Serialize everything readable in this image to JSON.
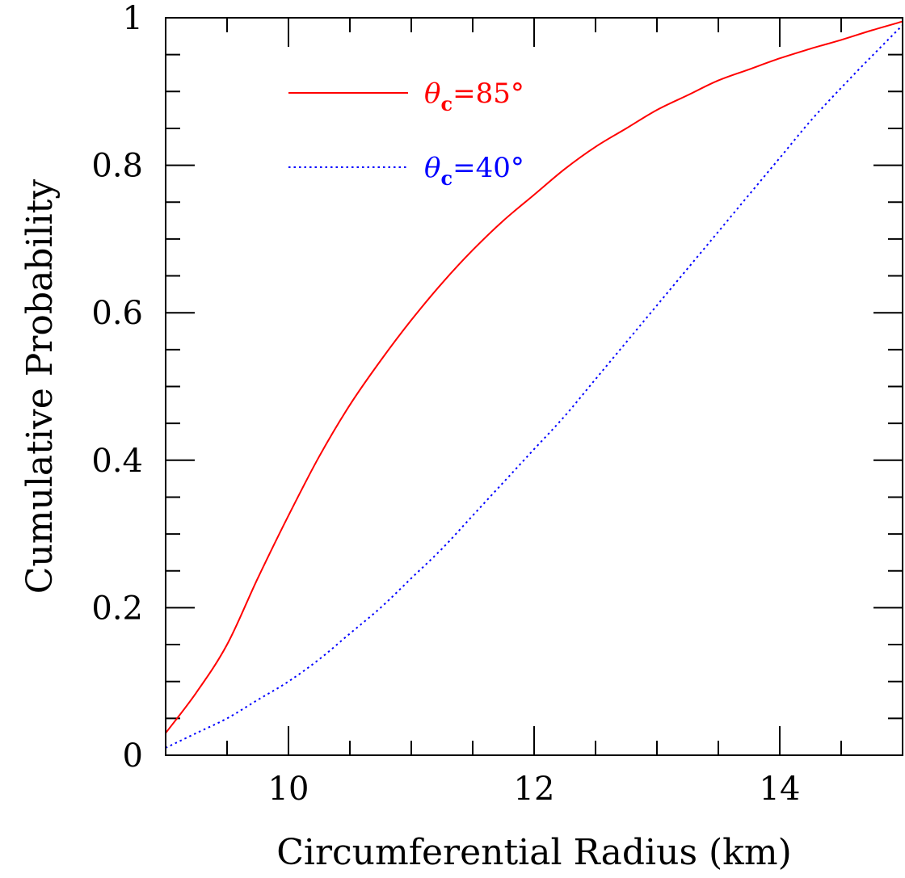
{
  "chart_data": {
    "type": "line",
    "title": "",
    "xlabel": "Circumferential Radius (km)",
    "ylabel": "Cumulative Probability",
    "xlim": [
      9,
      15
    ],
    "ylim": [
      0,
      1
    ],
    "xticks": [
      10,
      12,
      14
    ],
    "yticks": [
      0,
      0.2,
      0.4,
      0.6,
      0.8,
      1
    ],
    "ytick_labels": [
      "0",
      "0.2",
      "0.4",
      "0.6",
      "0.8",
      "1"
    ],
    "grid": false,
    "legend_position": "top-left",
    "series": [
      {
        "name": "θc=85°",
        "legend": {
          "symbol": "θ",
          "subscript": "c",
          "value": "=85°"
        },
        "color": "#ff0000",
        "style": "solid",
        "x": [
          9.0,
          9.25,
          9.5,
          9.75,
          10.0,
          10.25,
          10.5,
          10.75,
          11.0,
          11.25,
          11.5,
          11.75,
          12.0,
          12.25,
          12.5,
          12.75,
          13.0,
          13.25,
          13.5,
          13.75,
          14.0,
          14.25,
          14.5,
          14.75,
          15.0
        ],
        "y": [
          0.03,
          0.085,
          0.15,
          0.24,
          0.325,
          0.405,
          0.475,
          0.535,
          0.59,
          0.64,
          0.685,
          0.725,
          0.76,
          0.795,
          0.825,
          0.85,
          0.875,
          0.895,
          0.915,
          0.93,
          0.945,
          0.958,
          0.97,
          0.983,
          0.995
        ]
      },
      {
        "name": "θc=40°",
        "legend": {
          "symbol": "θ",
          "subscript": "c",
          "value": "=40°"
        },
        "color": "#0000ff",
        "style": "dotted",
        "x": [
          9.0,
          9.25,
          9.5,
          9.75,
          10.0,
          10.25,
          10.5,
          10.75,
          11.0,
          11.25,
          11.5,
          11.75,
          12.0,
          12.25,
          12.5,
          12.75,
          13.0,
          13.25,
          13.5,
          13.75,
          14.0,
          14.25,
          14.5,
          14.75,
          15.0
        ],
        "y": [
          0.01,
          0.03,
          0.05,
          0.075,
          0.1,
          0.13,
          0.165,
          0.2,
          0.24,
          0.28,
          0.325,
          0.37,
          0.415,
          0.46,
          0.51,
          0.56,
          0.61,
          0.66,
          0.71,
          0.76,
          0.81,
          0.86,
          0.905,
          0.948,
          0.99
        ]
      }
    ]
  }
}
